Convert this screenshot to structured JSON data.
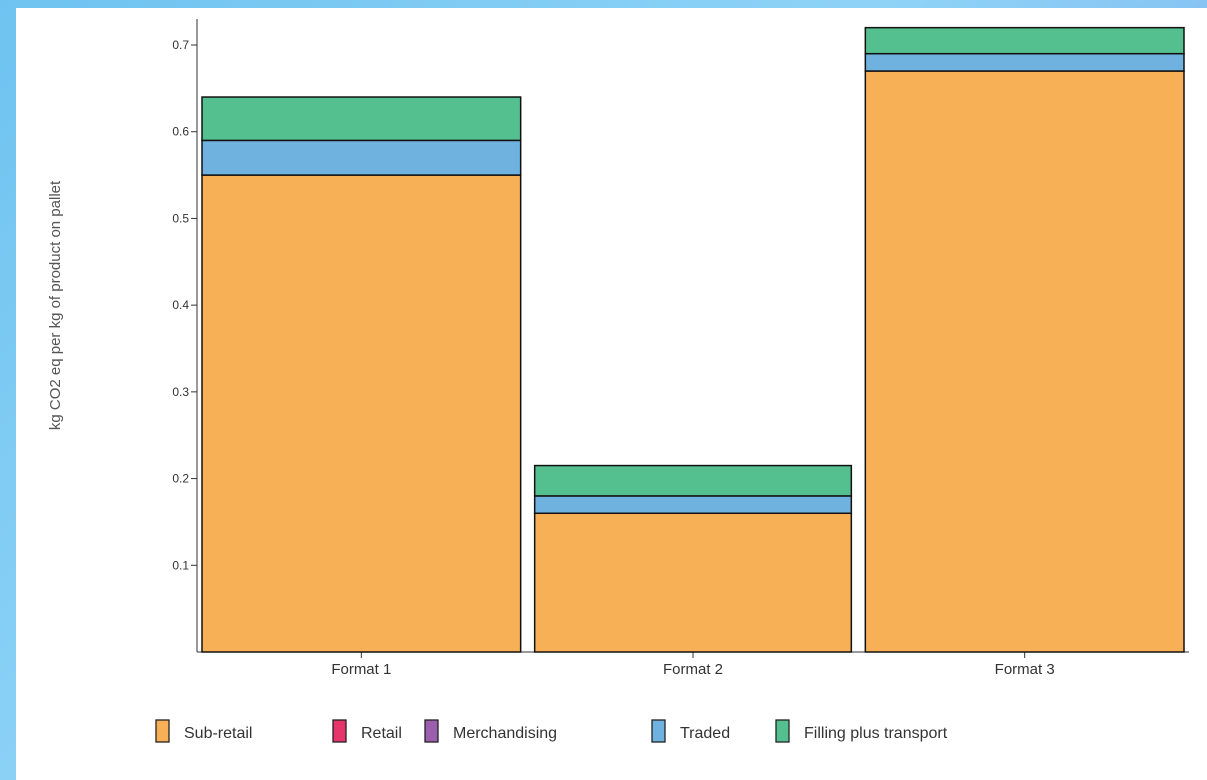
{
  "chart_data": {
    "type": "bar",
    "stacked": true,
    "categories": [
      "Format 1",
      "Format 2",
      "Format 3"
    ],
    "series": [
      {
        "name": "Sub-retail",
        "color": "#f7b055",
        "values": [
          0.55,
          0.16,
          0.67
        ]
      },
      {
        "name": "Retail",
        "color": "#e5356b",
        "values": [
          0.0,
          0.0,
          0.0
        ]
      },
      {
        "name": "Merchandising",
        "color": "#9b5fae",
        "values": [
          0.0,
          0.0,
          0.0
        ]
      },
      {
        "name": "Traded",
        "color": "#6fb2e0",
        "values": [
          0.04,
          0.02,
          0.02
        ]
      },
      {
        "name": "Filling plus transport",
        "color": "#55c08f",
        "values": [
          0.05,
          0.035,
          0.03
        ]
      }
    ],
    "ylabel": "kg CO2 eq per kg of product on pallet",
    "xlabel": "",
    "yticks": [
      "0.1",
      "0.2",
      "0.3",
      "0.4",
      "0.5",
      "0.6",
      "0.7"
    ],
    "ylim": [
      0,
      0.73
    ],
    "grid": false,
    "legend_position": "bottom"
  }
}
